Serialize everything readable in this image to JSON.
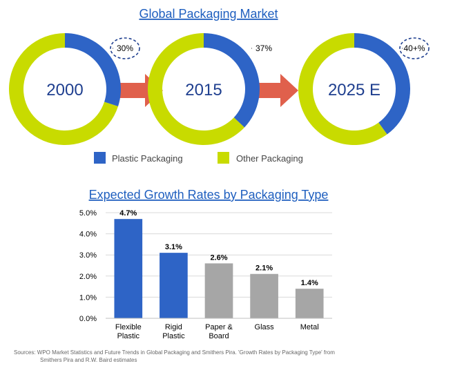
{
  "chart_data": [
    {
      "type": "pie",
      "title": "Global Packaging Market",
      "legend": {
        "placement": "bottom",
        "entries": [
          {
            "name": "Plastic Packaging",
            "color": "#2e64c6"
          },
          {
            "name": "Other Packaging",
            "color": "#c8db00"
          }
        ]
      },
      "donuts": [
        {
          "label": "2000",
          "plastic_share": 30,
          "share_label": "30%",
          "highlighted": true
        },
        {
          "label": "2015",
          "plastic_share": 37,
          "share_label": "37%",
          "highlighted": false
        },
        {
          "label": "2025 E",
          "plastic_share": 40,
          "share_label": "40+%",
          "highlighted": true
        }
      ],
      "arrow_color": "#e0604c"
    },
    {
      "type": "bar",
      "title": "Expected Growth Rates by Packaging Type",
      "categories": [
        [
          "Flexible",
          "Plastic"
        ],
        [
          "Rigid",
          "Plastic"
        ],
        [
          "Paper &",
          "Board"
        ],
        [
          "Glass"
        ],
        [
          "Metal"
        ]
      ],
      "values": [
        4.7,
        3.1,
        2.6,
        2.1,
        1.4
      ],
      "data_labels": [
        "4.7%",
        "3.1%",
        "2.6%",
        "2.1%",
        "1.4%"
      ],
      "bar_colors": [
        "#2e64c6",
        "#2e64c6",
        "#a6a6a6",
        "#a6a6a6",
        "#a6a6a6"
      ],
      "y_ticks": [
        "0.0%",
        "1.0%",
        "2.0%",
        "3.0%",
        "4.0%",
        "5.0%"
      ],
      "ylim": [
        0,
        5
      ],
      "grid": true,
      "xlabel": "",
      "ylabel": ""
    }
  ],
  "source": {
    "line1": "Sources: WPO Market Statistics and Future Trends in Global Packaging and Smithers Pira.  'Growth Rates by Packaging Type' from",
    "line2": "Smithers Pira and R.W. Baird estimates"
  }
}
